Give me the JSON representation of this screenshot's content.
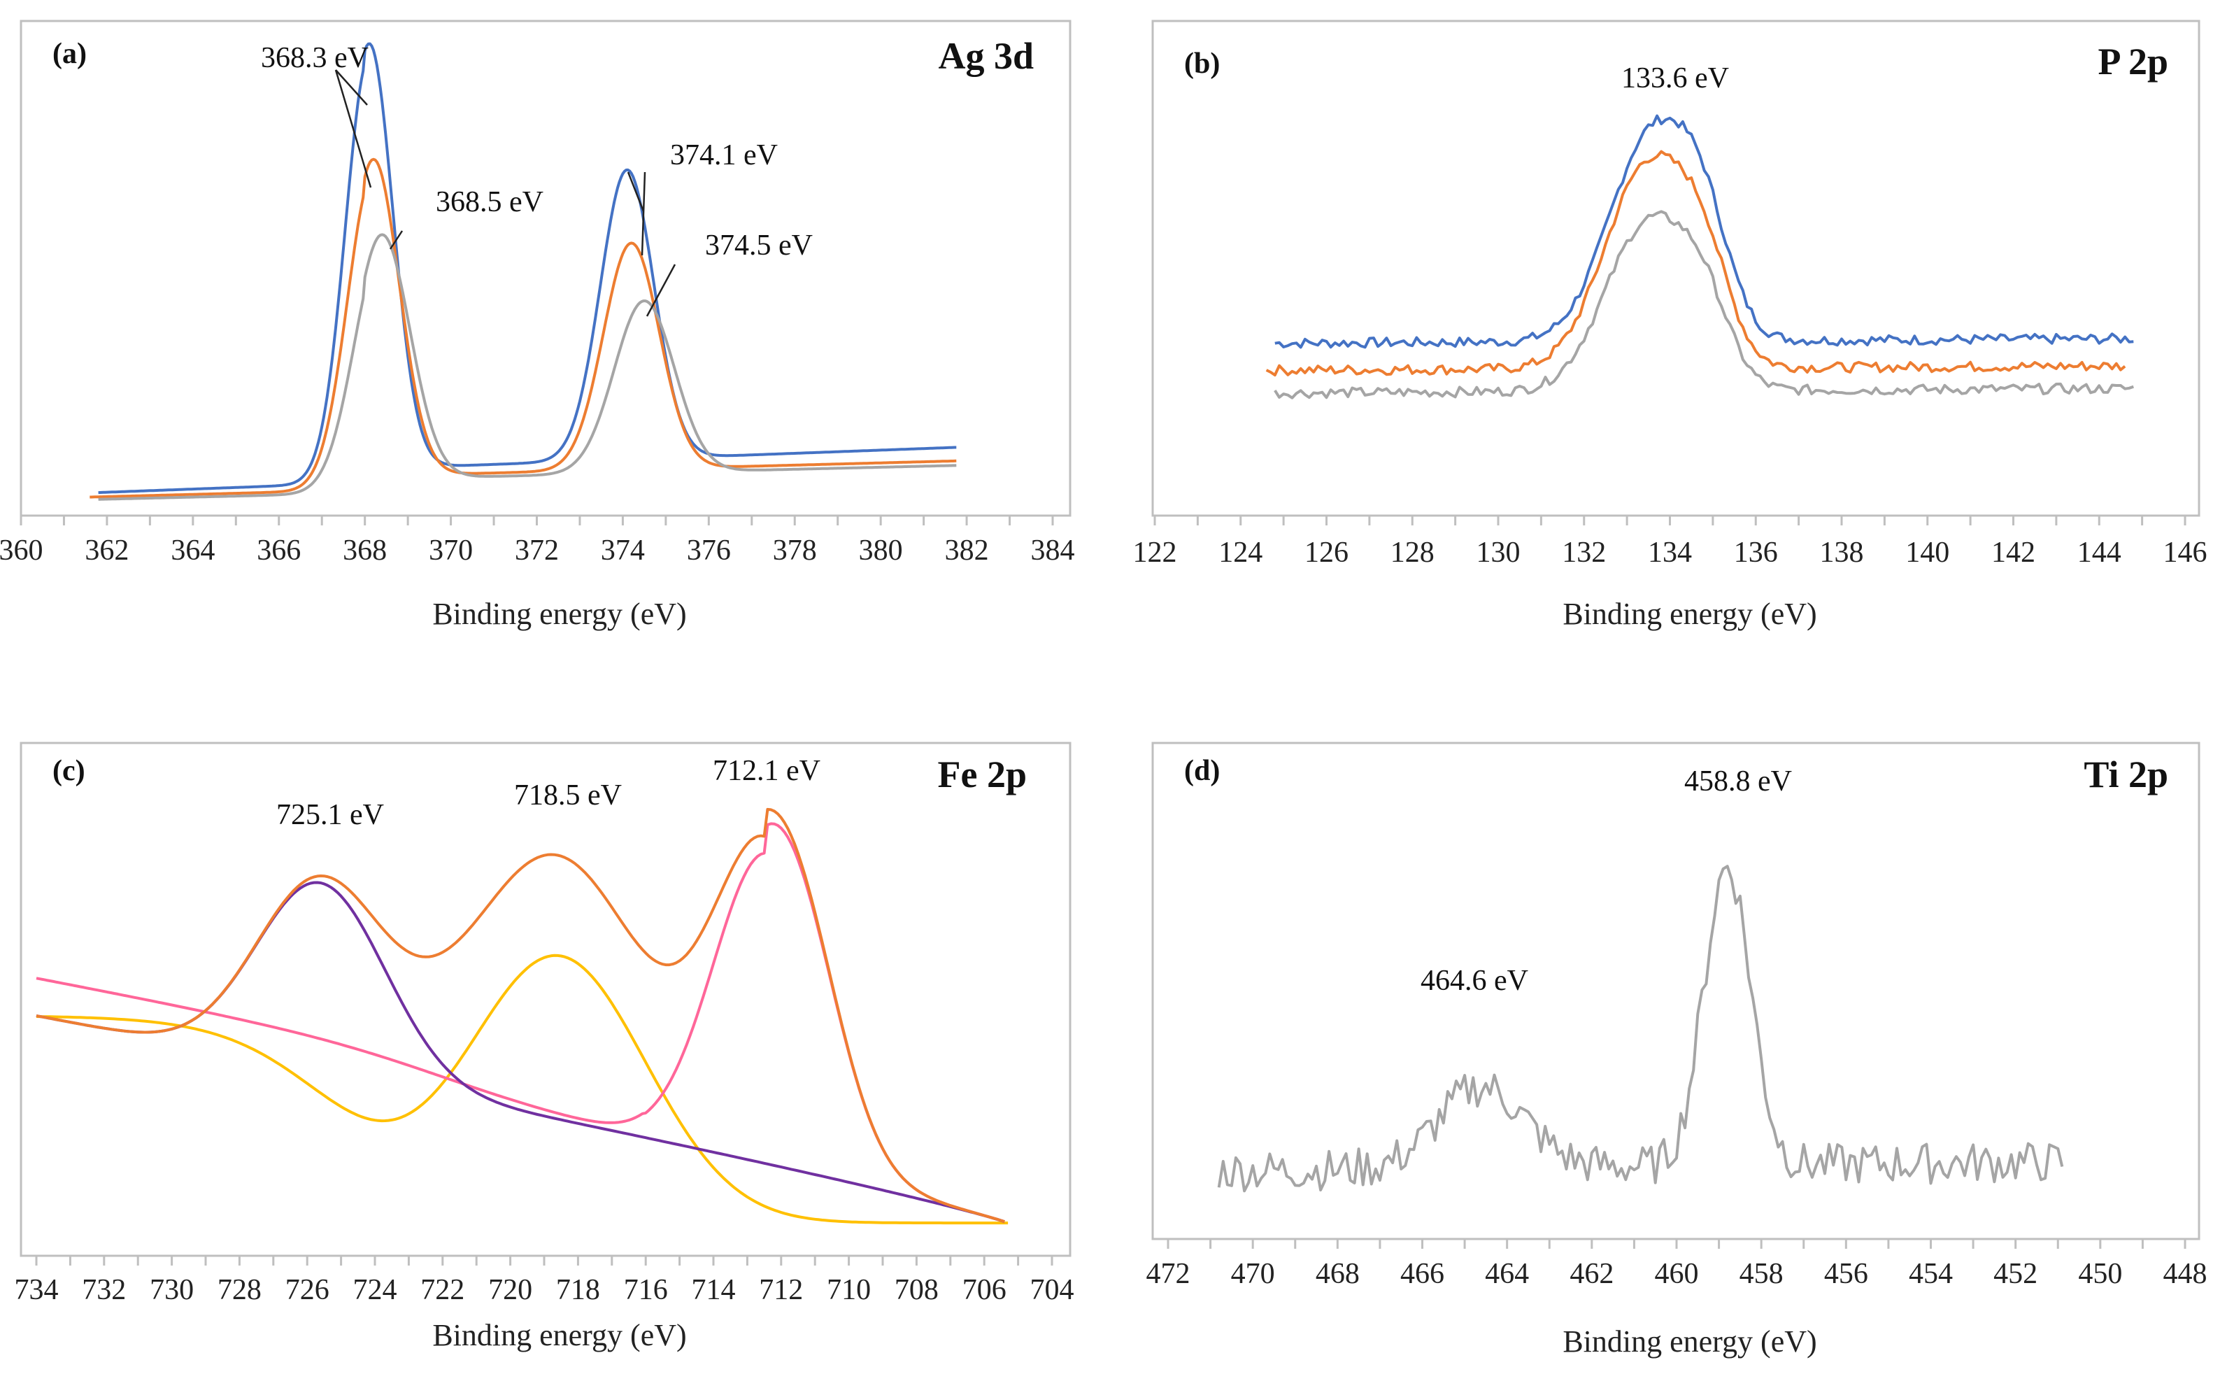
{
  "chart_data": [
    {
      "type": "line",
      "panel_label": "(a)",
      "title": "Ag 3d",
      "xlabel": "Binding energy (eV)",
      "ylabel": "",
      "xlim": [
        360,
        384
      ],
      "xticks": [
        "360",
        "362",
        "364",
        "366",
        "368",
        "370",
        "372",
        "374",
        "376",
        "378",
        "380",
        "382",
        "384"
      ],
      "x_reversed": false,
      "ylim": [
        0,
        100
      ],
      "series": [
        {
          "name": "blue",
          "color": "#4472C4",
          "peaks": [
            [
              368.1,
              94,
              0.55
            ],
            [
              374.1,
              64,
              0.62
            ]
          ],
          "baseline": [
            2,
            9
          ],
          "x": [
            361.8,
            381.8
          ]
        },
        {
          "name": "orange",
          "color": "#ED7D31",
          "peaks": [
            [
              368.2,
              70,
              0.6
            ],
            [
              374.2,
              50,
              0.65
            ]
          ],
          "baseline": [
            1,
            6
          ],
          "x": [
            361.6,
            381.8
          ]
        },
        {
          "name": "gray",
          "color": "#A5A5A5",
          "peaks": [
            [
              368.4,
              54,
              0.65
            ],
            [
              374.5,
              38,
              0.7
            ]
          ],
          "baseline": [
            0.5,
            5
          ],
          "x": [
            361.8,
            381.8
          ]
        }
      ],
      "annotations": [
        {
          "text": "368.3 eV",
          "x": 368.3
        },
        {
          "text": "368.5 eV",
          "x": 368.5
        },
        {
          "text": "374.1 eV",
          "x": 374.1
        },
        {
          "text": "374.5 eV",
          "x": 374.5
        }
      ]
    },
    {
      "type": "line",
      "panel_label": "(b)",
      "title": "P 2p",
      "xlabel": "Binding energy (eV)",
      "ylabel": "",
      "xlim": [
        122,
        146
      ],
      "xticks": [
        "122",
        "124",
        "126",
        "128",
        "130",
        "132",
        "134",
        "136",
        "138",
        "140",
        "142",
        "144",
        "146"
      ],
      "x_reversed": false,
      "ylim": [
        0,
        100
      ],
      "series": [
        {
          "name": "blue",
          "color": "#4472C4",
          "peaks": [
            [
              133.6,
              46,
              1.0
            ]
          ],
          "baseline": [
            35,
            36
          ],
          "x": [
            124.8,
            144.8
          ]
        },
        {
          "name": "orange",
          "color": "#ED7D31",
          "peaks": [
            [
              133.5,
              45,
              1.0
            ]
          ],
          "baseline": [
            29,
            30
          ],
          "x": [
            124.6,
            144.6
          ]
        },
        {
          "name": "gray",
          "color": "#A5A5A5",
          "peaks": [
            [
              133.5,
              37,
              1.0
            ]
          ],
          "baseline": [
            24,
            25
          ],
          "x": [
            124.8,
            144.8
          ]
        }
      ],
      "annotations": [
        {
          "text": "133.6 eV",
          "x": 133.6
        }
      ]
    },
    {
      "type": "line",
      "panel_label": "(c)",
      "title": "Fe 2p",
      "xlabel": "Binding energy (eV)",
      "ylabel": "",
      "xlim": [
        734,
        704
      ],
      "xticks": [
        "734",
        "732",
        "730",
        "728",
        "726",
        "724",
        "722",
        "720",
        "718",
        "716",
        "714",
        "712",
        "710",
        "708",
        "706",
        "704"
      ],
      "x_reversed": true,
      "ylim": [
        0,
        100
      ],
      "series": [
        {
          "name": "envelope",
          "color": "#ED7D31"
        },
        {
          "name": "718.5 component",
          "color": "#FFC000"
        },
        {
          "name": "712.1 component",
          "color": "#FF6699"
        },
        {
          "name": "725.1 component",
          "color": "#7030A0"
        }
      ],
      "annotations": [
        {
          "text": "725.1 eV",
          "x": 725.1
        },
        {
          "text": "718.5 eV",
          "x": 718.5
        },
        {
          "text": "712.1 eV",
          "x": 712.1
        }
      ]
    },
    {
      "type": "line",
      "panel_label": "(d)",
      "title": "Ti 2p",
      "xlabel": "Binding energy (eV)",
      "ylabel": "",
      "xlim": [
        472,
        448
      ],
      "xticks": [
        "472",
        "470",
        "468",
        "466",
        "464",
        "462",
        "460",
        "458",
        "456",
        "454",
        "452",
        "450",
        "448"
      ],
      "x_reversed": true,
      "ylim": [
        0,
        100
      ],
      "series": [
        {
          "name": "Ti 2p",
          "color": "#A5A5A5",
          "peaks": [
            [
              458.8,
              66,
              0.55
            ],
            [
              464.6,
              18,
              1.0
            ]
          ],
          "x": [
            470.8,
            450.8
          ]
        }
      ],
      "annotations": [
        {
          "text": "458.8 eV",
          "x": 458.8
        },
        {
          "text": "464.6 eV",
          "x": 464.6
        }
      ]
    }
  ]
}
